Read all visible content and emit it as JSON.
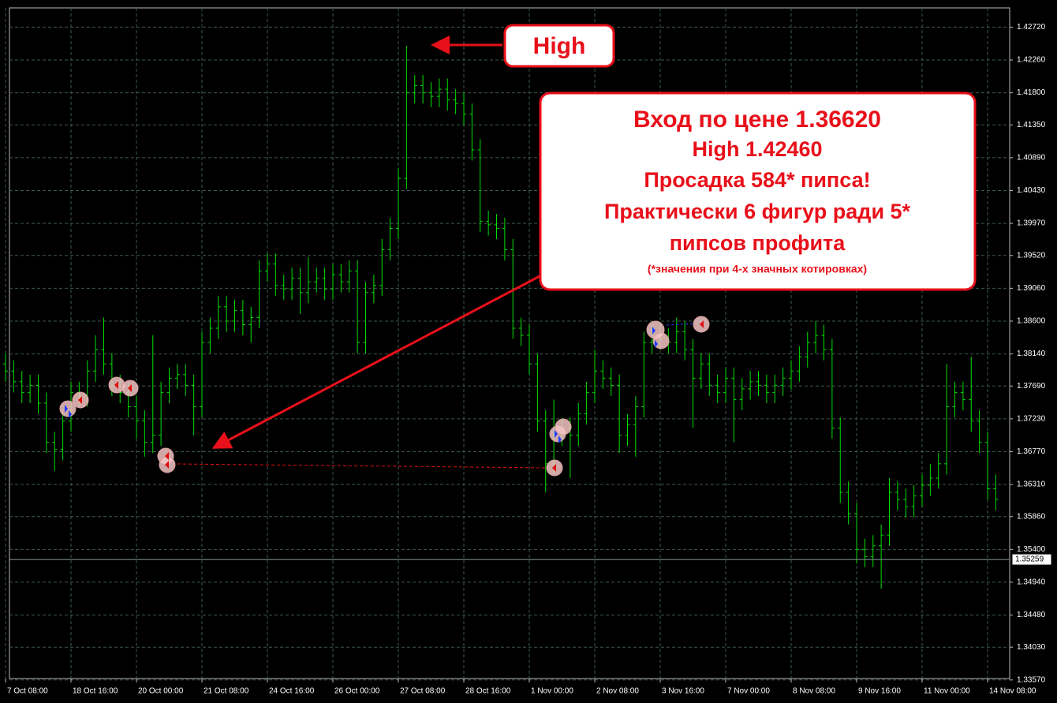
{
  "chart_data": {
    "type": "ohlc",
    "color": "#00e000",
    "grid": true,
    "high_label": "High",
    "info_box": [
      "Вход по цене 1.36620",
      "High 1.42460",
      "Просадка 584* пипса!",
      "Практически 6 фигур ради 5*",
      "пипсов профита",
      "(*значения при 4-х значных котировках)"
    ],
    "ylim": [
      1.3359,
      1.4299
    ],
    "yticks": [
      {
        "value": 1.4272,
        "label": "1.42720"
      },
      {
        "value": 1.4226,
        "label": "1.42260"
      },
      {
        "value": 1.418,
        "label": "1.41800"
      },
      {
        "value": 1.4135,
        "label": "1.41350"
      },
      {
        "value": 1.4089,
        "label": "1.40890"
      },
      {
        "value": 1.4043,
        "label": "1.40430"
      },
      {
        "value": 1.3997,
        "label": "1.39970"
      },
      {
        "value": 1.3952,
        "label": "1.39520"
      },
      {
        "value": 1.3906,
        "label": "1.39060"
      },
      {
        "value": 1.386,
        "label": "1.38600"
      },
      {
        "value": 1.3814,
        "label": "1.38140"
      },
      {
        "value": 1.3769,
        "label": "1.37690"
      },
      {
        "value": 1.3723,
        "label": "1.37230"
      },
      {
        "value": 1.3677,
        "label": "1.36770"
      },
      {
        "value": 1.3631,
        "label": "1.36310"
      },
      {
        "value": 1.3586,
        "label": "1.35860"
      },
      {
        "value": 1.354,
        "label": "1.35400"
      },
      {
        "value": 1.3494,
        "label": "1.34940"
      },
      {
        "value": 1.3448,
        "label": "1.34480"
      },
      {
        "value": 1.3403,
        "label": "1.34030"
      },
      {
        "value": 1.3357,
        "label": "1.33570"
      }
    ],
    "current_price": {
      "value": 1.35259,
      "label": "1.35259"
    },
    "categories": [
      "7 Oct 08:00",
      null,
      null,
      null,
      null,
      null,
      null,
      null,
      "18 Oct 16:00",
      null,
      null,
      null,
      null,
      null,
      null,
      null,
      "20 Oct 00:00",
      null,
      null,
      null,
      null,
      null,
      null,
      null,
      "21 Oct 08:00",
      null,
      null,
      null,
      null,
      null,
      null,
      null,
      "24 Oct 16:00",
      null,
      null,
      null,
      null,
      null,
      null,
      null,
      "26 Oct 00:00",
      null,
      null,
      null,
      null,
      null,
      null,
      null,
      "27 Oct 08:00",
      null,
      null,
      null,
      null,
      null,
      null,
      null,
      "28 Oct 16:00",
      null,
      null,
      null,
      null,
      null,
      null,
      null,
      "1 Nov 00:00",
      null,
      null,
      null,
      null,
      null,
      null,
      null,
      "2 Nov 08:00",
      null,
      null,
      null,
      null,
      null,
      null,
      null,
      "3 Nov 16:00",
      null,
      null,
      null,
      null,
      null,
      null,
      null,
      "7 Nov 00:00",
      null,
      null,
      null,
      null,
      null,
      null,
      null,
      "8 Nov 08:00",
      null,
      null,
      null,
      null,
      null,
      null,
      null,
      "9 Nov 16:00",
      null,
      null,
      null,
      null,
      null,
      null,
      null,
      "11 Nov 00:00",
      null,
      null,
      null,
      null,
      null,
      null,
      null,
      "14 Nov 08:00",
      null
    ],
    "open": [
      1.38,
      1.379,
      1.3775,
      1.376,
      1.377,
      1.3745,
      1.369,
      1.368,
      1.372,
      1.376,
      1.3755,
      1.379,
      1.382,
      1.38,
      1.377,
      1.376,
      1.374,
      1.372,
      1.369,
      1.37,
      1.376,
      1.378,
      1.3785,
      1.377,
      1.374,
      1.383,
      1.385,
      1.388,
      1.386,
      1.3875,
      1.3855,
      1.3865,
      1.393,
      1.394,
      1.391,
      1.3905,
      1.392,
      1.39,
      1.3915,
      1.392,
      1.3905,
      1.3925,
      1.3915,
      1.393,
      1.383,
      1.39,
      1.391,
      1.396,
      1.399,
      1.406,
      1.418,
      1.419,
      1.418,
      1.4175,
      1.4185,
      1.417,
      1.4165,
      1.415,
      1.41,
      1.4,
      1.3995,
      1.399,
      1.396,
      1.385,
      1.384,
      1.38,
      1.372,
      1.366,
      1.37,
      1.371,
      1.37,
      1.373,
      1.376,
      1.379,
      1.378,
      1.377,
      1.37,
      1.3715,
      1.374,
      1.383,
      1.384,
      1.3835,
      1.383,
      1.3845,
      1.382,
      1.378,
      1.38,
      1.377,
      1.376,
      1.378,
      1.375,
      1.3765,
      1.3775,
      1.377,
      1.376,
      1.377,
      1.378,
      1.379,
      1.381,
      1.383,
      1.384,
      1.382,
      1.371,
      1.362,
      1.359,
      1.354,
      1.353,
      1.3545,
      1.356,
      1.362,
      1.361,
      1.36,
      1.3615,
      1.363,
      1.364,
      1.366,
      1.374,
      1.376,
      1.375,
      1.372,
      1.369,
      1.3625
    ],
    "high": [
      1.3815,
      1.3805,
      1.379,
      1.3785,
      1.3785,
      1.376,
      1.3705,
      1.3735,
      1.3775,
      1.3775,
      1.3805,
      1.384,
      1.3865,
      1.3815,
      1.3785,
      1.3775,
      1.3755,
      1.3735,
      1.384,
      1.3775,
      1.3795,
      1.38,
      1.38,
      1.3785,
      1.3845,
      1.3865,
      1.3895,
      1.3895,
      1.389,
      1.389,
      1.388,
      1.3945,
      1.3955,
      1.3955,
      1.3925,
      1.3935,
      1.3935,
      1.395,
      1.3935,
      1.3935,
      1.394,
      1.394,
      1.3945,
      1.3945,
      1.3915,
      1.3925,
      1.3975,
      1.4005,
      1.4075,
      1.4246,
      1.4205,
      1.4205,
      1.4195,
      1.42,
      1.42,
      1.4185,
      1.418,
      1.4165,
      1.4115,
      1.4015,
      1.401,
      1.4005,
      1.3975,
      1.3865,
      1.3855,
      1.3815,
      1.3735,
      1.375,
      1.3725,
      1.3725,
      1.3745,
      1.3775,
      1.382,
      1.3805,
      1.3795,
      1.3785,
      1.373,
      1.3755,
      1.3845,
      1.3855,
      1.3855,
      1.385,
      1.3865,
      1.386,
      1.3835,
      1.3815,
      1.3815,
      1.3785,
      1.3795,
      1.3795,
      1.378,
      1.379,
      1.379,
      1.3785,
      1.3785,
      1.3795,
      1.3805,
      1.3825,
      1.3845,
      1.386,
      1.3855,
      1.3835,
      1.3725,
      1.3635,
      1.3605,
      1.3555,
      1.356,
      1.3575,
      1.364,
      1.3635,
      1.3625,
      1.363,
      1.3645,
      1.366,
      1.3675,
      1.38,
      1.3775,
      1.3775,
      1.381,
      1.3735,
      1.3705,
      1.3645
    ],
    "low": [
      1.3775,
      1.376,
      1.3745,
      1.3745,
      1.373,
      1.3675,
      1.365,
      1.3665,
      1.3705,
      1.374,
      1.374,
      1.3775,
      1.3785,
      1.3755,
      1.3745,
      1.3725,
      1.3695,
      1.367,
      1.3675,
      1.3685,
      1.3745,
      1.3765,
      1.3755,
      1.37,
      1.3725,
      1.3815,
      1.3835,
      1.3845,
      1.3845,
      1.384,
      1.383,
      1.385,
      1.3915,
      1.3895,
      1.389,
      1.389,
      1.387,
      1.3885,
      1.39,
      1.389,
      1.389,
      1.39,
      1.39,
      1.3815,
      1.3815,
      1.3885,
      1.3895,
      1.3945,
      1.3975,
      1.4045,
      1.4165,
      1.4165,
      1.416,
      1.416,
      1.4155,
      1.415,
      1.4135,
      1.4085,
      1.3985,
      1.398,
      1.3975,
      1.3945,
      1.3835,
      1.3825,
      1.3785,
      1.3705,
      1.362,
      1.3645,
      1.3685,
      1.364,
      1.3685,
      1.3715,
      1.3745,
      1.3765,
      1.3755,
      1.3675,
      1.3685,
      1.367,
      1.3725,
      1.3815,
      1.382,
      1.3815,
      1.3815,
      1.3805,
      1.371,
      1.3765,
      1.3755,
      1.3745,
      1.3745,
      1.369,
      1.3735,
      1.375,
      1.3755,
      1.3745,
      1.3745,
      1.3755,
      1.3765,
      1.3775,
      1.3795,
      1.3815,
      1.3805,
      1.3695,
      1.3605,
      1.3575,
      1.352,
      1.3515,
      1.3515,
      1.3485,
      1.3545,
      1.3595,
      1.3585,
      1.3585,
      1.36,
      1.3615,
      1.3625,
      1.3645,
      1.3725,
      1.3735,
      1.3705,
      1.3675,
      1.361,
      1.3595
    ],
    "close": [
      1.379,
      1.3775,
      1.376,
      1.377,
      1.3745,
      1.369,
      1.368,
      1.372,
      1.376,
      1.3755,
      1.379,
      1.382,
      1.38,
      1.377,
      1.376,
      1.374,
      1.372,
      1.369,
      1.37,
      1.376,
      1.378,
      1.3785,
      1.377,
      1.374,
      1.383,
      1.385,
      1.388,
      1.386,
      1.3875,
      1.3855,
      1.3865,
      1.393,
      1.394,
      1.391,
      1.3905,
      1.392,
      1.39,
      1.3915,
      1.392,
      1.3905,
      1.3925,
      1.3915,
      1.393,
      1.383,
      1.39,
      1.391,
      1.396,
      1.399,
      1.406,
      1.418,
      1.419,
      1.418,
      1.4175,
      1.4185,
      1.417,
      1.4165,
      1.415,
      1.41,
      1.4,
      1.3995,
      1.399,
      1.396,
      1.385,
      1.384,
      1.38,
      1.372,
      1.366,
      1.37,
      1.371,
      1.37,
      1.373,
      1.376,
      1.379,
      1.378,
      1.377,
      1.37,
      1.3715,
      1.374,
      1.383,
      1.384,
      1.3835,
      1.383,
      1.3845,
      1.382,
      1.378,
      1.38,
      1.377,
      1.376,
      1.378,
      1.375,
      1.3765,
      1.3775,
      1.377,
      1.376,
      1.377,
      1.378,
      1.379,
      1.381,
      1.383,
      1.384,
      1.382,
      1.371,
      1.362,
      1.359,
      1.354,
      1.353,
      1.3545,
      1.356,
      1.362,
      1.361,
      1.36,
      1.3615,
      1.363,
      1.364,
      1.366,
      1.374,
      1.376,
      1.375,
      1.372,
      1.369,
      1.3625,
      1.361
    ]
  }
}
